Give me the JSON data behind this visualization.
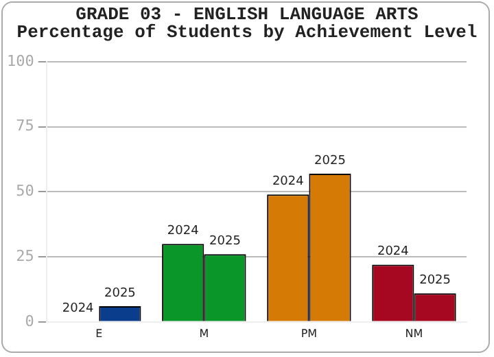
{
  "chart_data": {
    "type": "bar",
    "title": "GRADE 03 - ENGLISH LANGUAGE ARTS",
    "subtitle": "Percentage of Students by Achievement Level",
    "categories": [
      "E",
      "M",
      "PM",
      "NM"
    ],
    "series": [
      {
        "name": "2024",
        "values": [
          0,
          30,
          49,
          22
        ],
        "colors": [
          "#0a3d8c",
          "#0a9628",
          "#d67a06",
          "#a50820"
        ]
      },
      {
        "name": "2025",
        "values": [
          6,
          26,
          57,
          11
        ],
        "colors": [
          "#0a3d8c",
          "#0a9628",
          "#d67a06",
          "#a50820"
        ]
      }
    ],
    "ylim": [
      0,
      100
    ],
    "yticks": [
      0,
      25,
      50,
      75,
      100
    ],
    "grid": "y",
    "legend": false
  }
}
